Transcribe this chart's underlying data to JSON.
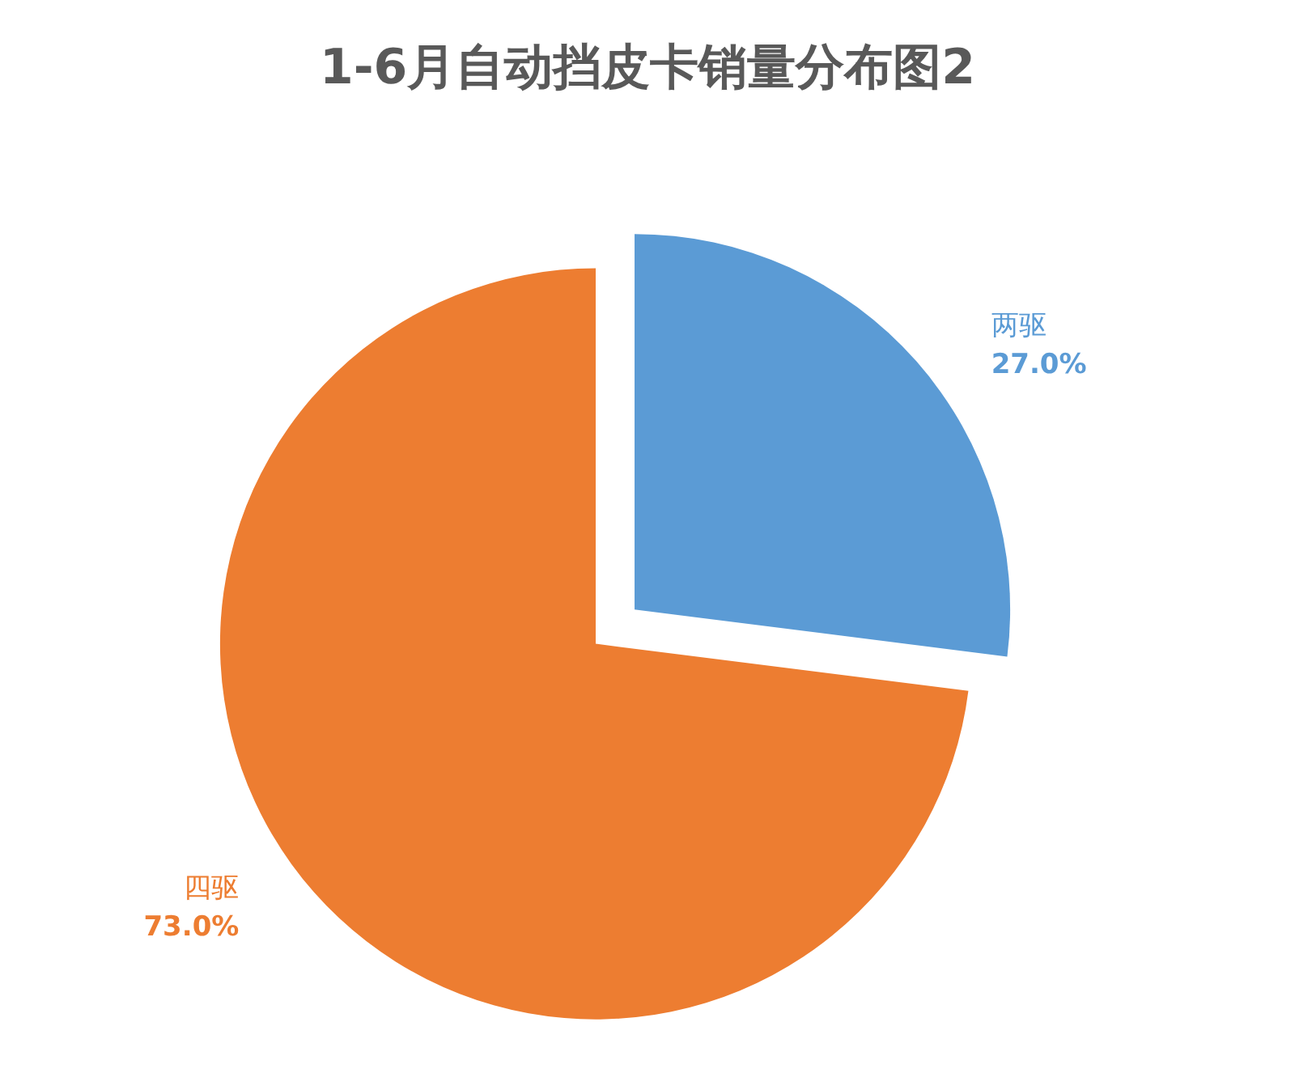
{
  "chart_data": {
    "type": "pie",
    "title": "1-6月自动挡皮卡销量分布图2",
    "categories": [
      "两驱",
      "四驱"
    ],
    "values": [
      27.0,
      73.0
    ],
    "value_labels": [
      "27.0%",
      "73.0%"
    ],
    "colors": [
      "#5b9bd5",
      "#ed7d31"
    ],
    "legend": false
  }
}
